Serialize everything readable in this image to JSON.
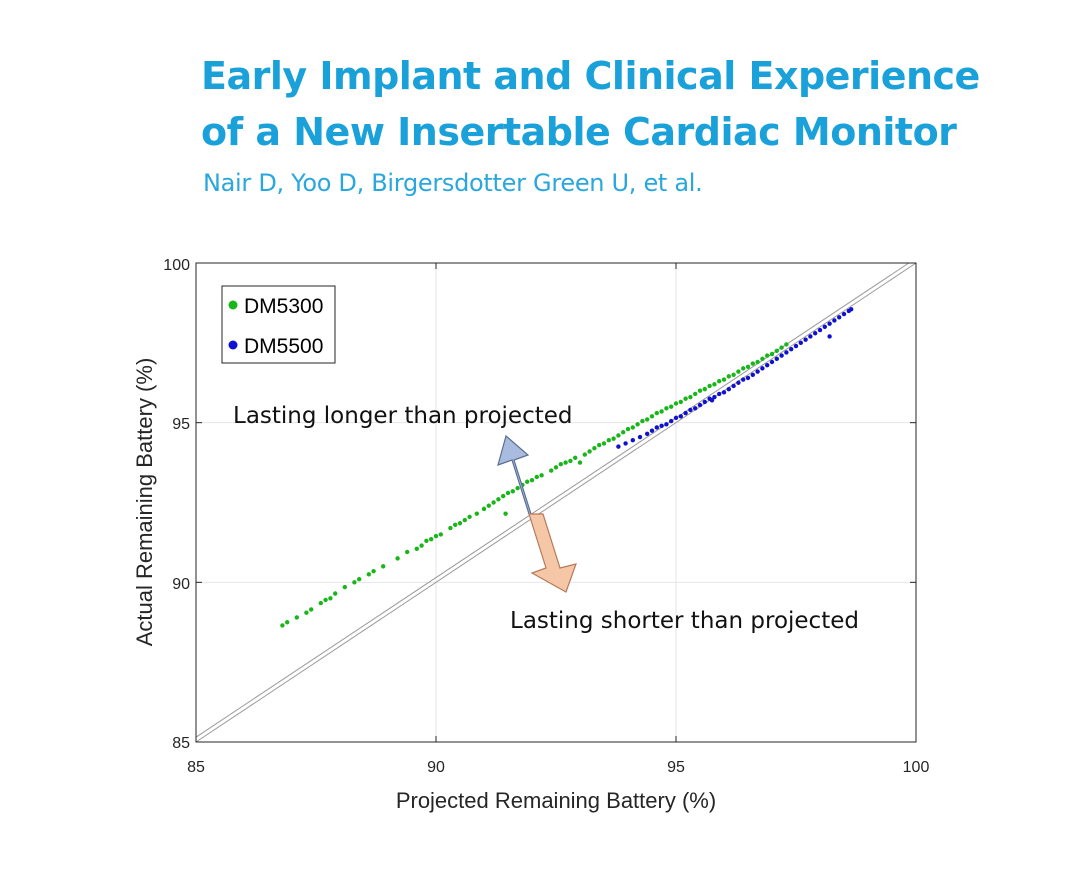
{
  "header": {
    "title_line1": "Early Implant and Clinical Experience",
    "title_line2": "of a New Insertable Cardiac Monitor",
    "authors": "Nair D, Yoo D, Birgersdotter Green U, et al."
  },
  "colors": {
    "title": "#1ba1d9",
    "dm5300": "#19b619",
    "dm5500": "#1010d0",
    "arrow_up": "#a9bcdf",
    "arrow_down": "#f6c7a6"
  },
  "chart_data": {
    "type": "scatter",
    "title": "",
    "xlabel": "Projected Remaining Battery (%)",
    "ylabel": "Actual Remaining Battery (%)",
    "xlim": [
      85,
      100
    ],
    "ylim": [
      85,
      100
    ],
    "xticks": [
      85,
      90,
      95,
      100
    ],
    "yticks": [
      85,
      90,
      95,
      100
    ],
    "x_tick_labels": [
      "85",
      "90",
      "95",
      "100"
    ],
    "y_tick_labels": [
      "85",
      "90",
      "95",
      "100"
    ],
    "grid": true,
    "legend": {
      "position": "top-left",
      "entries": [
        "DM5300",
        "DM5500"
      ]
    },
    "reference_lines": [
      {
        "name": "identity",
        "slope": 1,
        "intercept": 0
      },
      {
        "name": "identity-offset",
        "slope": 1,
        "intercept": 0.15
      }
    ],
    "annotations": [
      {
        "text": "Lasting longer than projected",
        "direction": "up"
      },
      {
        "text": "Lasting shorter than projected",
        "direction": "down"
      }
    ],
    "series": [
      {
        "name": "DM5300",
        "points": [
          [
            86.8,
            88.65
          ],
          [
            86.9,
            88.75
          ],
          [
            87.1,
            88.9
          ],
          [
            87.3,
            89.05
          ],
          [
            87.4,
            89.15
          ],
          [
            87.6,
            89.35
          ],
          [
            87.7,
            89.45
          ],
          [
            87.8,
            89.5
          ],
          [
            87.9,
            89.65
          ],
          [
            88.1,
            89.85
          ],
          [
            88.3,
            90.0
          ],
          [
            88.4,
            90.1
          ],
          [
            88.6,
            90.25
          ],
          [
            88.7,
            90.35
          ],
          [
            88.9,
            90.5
          ],
          [
            89.2,
            90.75
          ],
          [
            89.4,
            90.95
          ],
          [
            89.6,
            91.05
          ],
          [
            89.7,
            91.15
          ],
          [
            89.8,
            91.3
          ],
          [
            89.9,
            91.35
          ],
          [
            90.0,
            91.45
          ],
          [
            90.1,
            91.5
          ],
          [
            90.3,
            91.7
          ],
          [
            90.4,
            91.8
          ],
          [
            90.5,
            91.85
          ],
          [
            90.6,
            91.95
          ],
          [
            90.7,
            92.05
          ],
          [
            90.85,
            92.15
          ],
          [
            91.0,
            92.3
          ],
          [
            91.1,
            92.4
          ],
          [
            91.2,
            92.5
          ],
          [
            91.3,
            92.6
          ],
          [
            91.4,
            92.7
          ],
          [
            91.45,
            92.15
          ],
          [
            91.5,
            92.8
          ],
          [
            91.6,
            92.85
          ],
          [
            91.7,
            92.95
          ],
          [
            91.8,
            93.05
          ],
          [
            91.9,
            93.15
          ],
          [
            92.0,
            93.2
          ],
          [
            92.1,
            93.3
          ],
          [
            92.2,
            93.35
          ],
          [
            92.4,
            93.5
          ],
          [
            92.5,
            93.6
          ],
          [
            92.6,
            93.7
          ],
          [
            92.7,
            93.75
          ],
          [
            92.8,
            93.8
          ],
          [
            92.9,
            93.9
          ],
          [
            93.0,
            93.75
          ],
          [
            93.1,
            94.0
          ],
          [
            93.2,
            94.1
          ],
          [
            93.3,
            94.2
          ],
          [
            93.4,
            94.3
          ],
          [
            93.5,
            94.35
          ],
          [
            93.6,
            94.45
          ],
          [
            93.7,
            94.5
          ],
          [
            93.8,
            94.6
          ],
          [
            93.9,
            94.7
          ],
          [
            94.0,
            94.8
          ],
          [
            94.1,
            94.85
          ],
          [
            94.2,
            94.95
          ],
          [
            94.3,
            95.05
          ],
          [
            94.4,
            95.1
          ],
          [
            94.5,
            95.2
          ],
          [
            94.6,
            95.3
          ],
          [
            94.7,
            95.35
          ],
          [
            94.8,
            95.45
          ],
          [
            94.9,
            95.5
          ],
          [
            95.0,
            95.6
          ],
          [
            95.1,
            95.65
          ],
          [
            95.2,
            95.75
          ],
          [
            95.3,
            95.8
          ],
          [
            95.4,
            95.9
          ],
          [
            95.5,
            96.0
          ],
          [
            95.6,
            96.05
          ],
          [
            95.7,
            96.15
          ],
          [
            95.8,
            96.2
          ],
          [
            95.9,
            96.3
          ],
          [
            96.0,
            96.35
          ],
          [
            96.1,
            96.45
          ],
          [
            96.2,
            96.5
          ],
          [
            96.3,
            96.6
          ],
          [
            96.4,
            96.7
          ],
          [
            96.5,
            96.75
          ],
          [
            96.6,
            96.85
          ],
          [
            96.7,
            96.9
          ],
          [
            96.8,
            97.0
          ],
          [
            96.9,
            97.1
          ],
          [
            97.0,
            97.15
          ],
          [
            97.1,
            97.25
          ],
          [
            97.2,
            97.35
          ],
          [
            97.3,
            97.45
          ]
        ]
      },
      {
        "name": "DM5500",
        "points": [
          [
            93.8,
            94.25
          ],
          [
            93.95,
            94.35
          ],
          [
            94.1,
            94.45
          ],
          [
            94.25,
            94.55
          ],
          [
            94.4,
            94.65
          ],
          [
            94.5,
            94.75
          ],
          [
            94.6,
            94.85
          ],
          [
            94.7,
            94.9
          ],
          [
            94.8,
            94.95
          ],
          [
            94.9,
            95.05
          ],
          [
            95.0,
            95.15
          ],
          [
            95.1,
            95.2
          ],
          [
            95.2,
            95.3
          ],
          [
            95.3,
            95.4
          ],
          [
            95.4,
            95.45
          ],
          [
            95.5,
            95.55
          ],
          [
            95.6,
            95.65
          ],
          [
            95.7,
            95.75
          ],
          [
            95.75,
            95.7
          ],
          [
            95.8,
            95.8
          ],
          [
            95.9,
            95.9
          ],
          [
            96.0,
            95.95
          ],
          [
            96.1,
            96.05
          ],
          [
            96.2,
            96.15
          ],
          [
            96.3,
            96.25
          ],
          [
            96.4,
            96.35
          ],
          [
            96.5,
            96.4
          ],
          [
            96.6,
            96.5
          ],
          [
            96.7,
            96.6
          ],
          [
            96.8,
            96.7
          ],
          [
            96.9,
            96.8
          ],
          [
            97.0,
            96.9
          ],
          [
            97.1,
            97.0
          ],
          [
            97.2,
            97.1
          ],
          [
            97.3,
            97.2
          ],
          [
            97.4,
            97.3
          ],
          [
            97.5,
            97.4
          ],
          [
            97.6,
            97.5
          ],
          [
            97.7,
            97.6
          ],
          [
            97.8,
            97.7
          ],
          [
            97.9,
            97.8
          ],
          [
            98.0,
            97.9
          ],
          [
            98.1,
            98.0
          ],
          [
            98.2,
            97.7
          ],
          [
            98.2,
            98.1
          ],
          [
            98.3,
            98.2
          ],
          [
            98.4,
            98.3
          ],
          [
            98.5,
            98.4
          ],
          [
            98.6,
            98.5
          ],
          [
            98.65,
            98.55
          ]
        ]
      }
    ]
  }
}
